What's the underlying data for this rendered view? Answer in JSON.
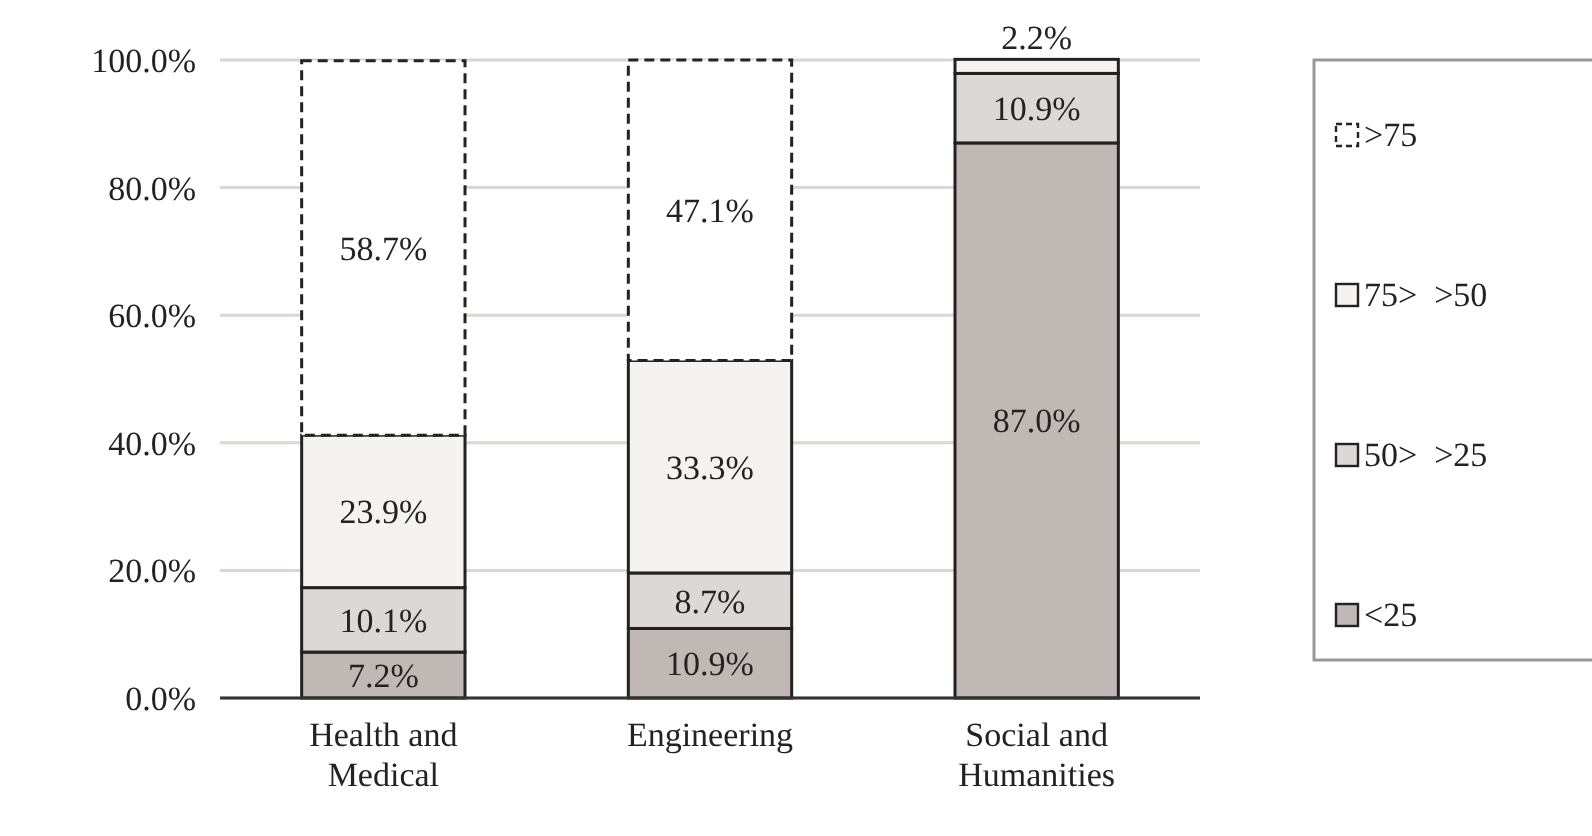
{
  "chart_data": {
    "type": "bar",
    "stacked": true,
    "categories": [
      "Health and Medical",
      "Engineering",
      "Social and Humanities"
    ],
    "series": [
      {
        "name": "<25",
        "color": "#c0b8b4",
        "values": [
          7.2,
          10.9,
          87.0
        ],
        "value_labels": [
          "7.2%",
          "10.9%",
          "87.0%"
        ]
      },
      {
        "name": "50>  >25",
        "color": "#dcd8d5",
        "values": [
          10.1,
          8.7,
          10.9
        ],
        "value_labels": [
          "10.1%",
          "8.7%",
          "10.9%"
        ]
      },
      {
        "name": "75>  >50",
        "color": "#f5f3f2",
        "values": [
          23.9,
          33.3,
          2.2
        ],
        "value_labels": [
          "23.9%",
          "33.3%",
          "2.2%"
        ]
      },
      {
        "name": ">75",
        "color": "#ffffff",
        "line_style": "dashed",
        "values": [
          58.7,
          47.1,
          null
        ],
        "value_labels": [
          "58.7%",
          "47.1%",
          null
        ]
      }
    ],
    "ylim": [
      0,
      100
    ],
    "yticks": [
      {
        "value": 0,
        "label": "0.0%"
      },
      {
        "value": 20,
        "label": "20.0%"
      },
      {
        "value": 40,
        "label": "40.0%"
      },
      {
        "value": 60,
        "label": "60.0%"
      },
      {
        "value": 80,
        "label": "80.0%"
      },
      {
        "value": 100,
        "label": "100.0%"
      }
    ],
    "grid": "y",
    "legend": "right"
  }
}
